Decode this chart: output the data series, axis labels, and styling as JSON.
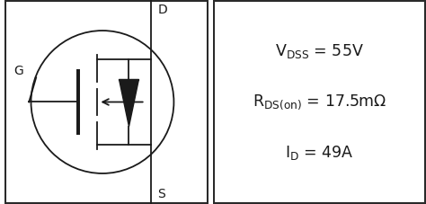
{
  "bg_color": "#ffffff",
  "border_color": "#2a2a2a",
  "text_color": "#1a1a1a",
  "label_G": "G",
  "label_D": "D",
  "label_S": "S"
}
